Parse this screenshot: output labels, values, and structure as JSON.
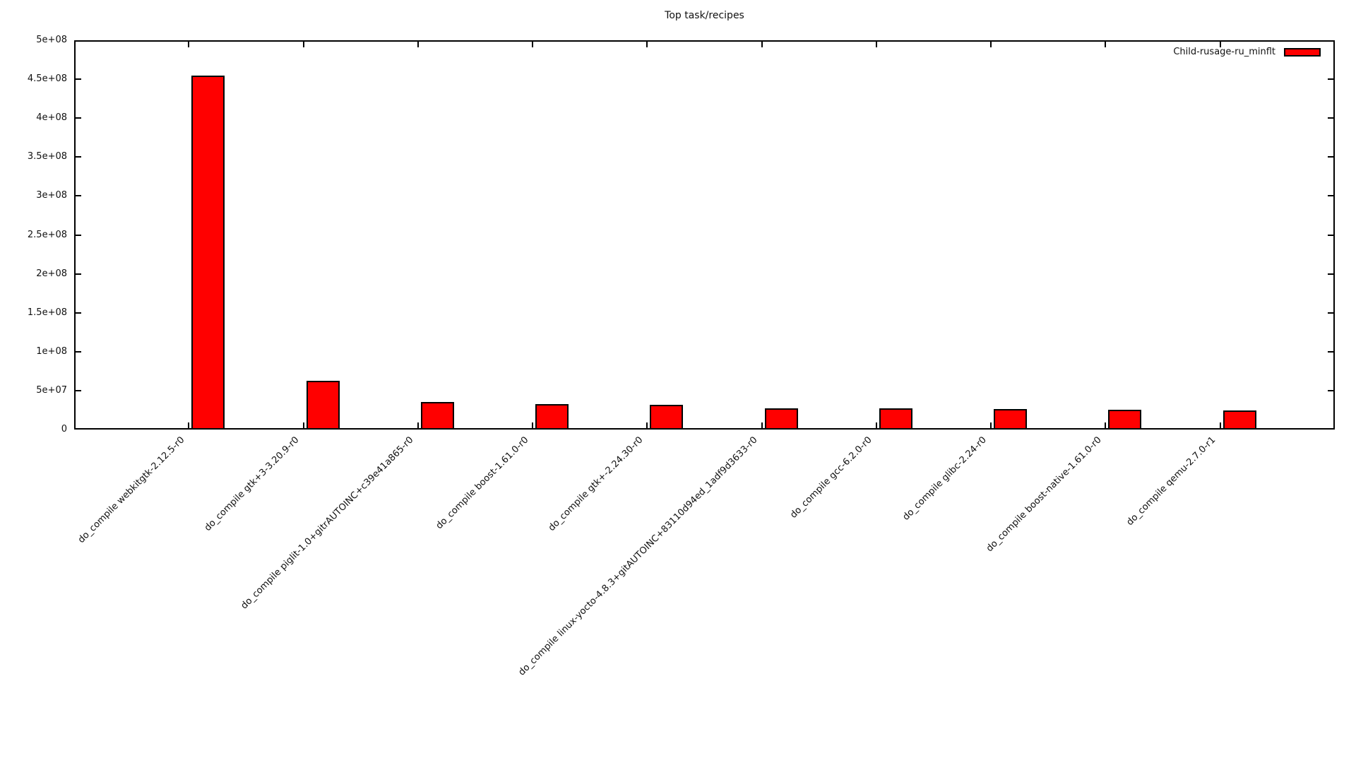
{
  "title": "Top task/recipes",
  "legend": {
    "label": "Child-rusage-ru_minflt"
  },
  "colors": {
    "bar_fill": "#ff0000",
    "bar_border": "#000000",
    "axis": "#000000",
    "text": "#111111",
    "background": "#ffffff"
  },
  "chart_data": {
    "type": "bar",
    "title": "Top task/recipes",
    "xlabel": "",
    "ylabel": "",
    "ylim": [
      0,
      500000000
    ],
    "ytick_labels": [
      "0",
      "5e+07",
      "1e+08",
      "1.5e+08",
      "2e+08",
      "2.5e+08",
      "3e+08",
      "3.5e+08",
      "4e+08",
      "4.5e+08",
      "5e+08"
    ],
    "grid": false,
    "legend_position": "top-right-inside",
    "categories": [
      "do_compile webkitgtk-2.12.5-r0",
      "do_compile gtk+3-3.20.9-r0",
      "do_compile piglit-1.0+gitrAUTOINC+c39e41a865-r0",
      "do_compile boost-1.61.0-r0",
      "do_compile gtk+-2.24.30-r0",
      "do_compile linux-yocto-4.8.3+gitAUTOINC+83110d94ed_1adf9d3633-r0",
      "do_compile gcc-6.2.0-r0",
      "do_compile glibc-2.24-r0",
      "do_compile boost-native-1.61.0-r0",
      "do_compile qemu-2.7.0-r1"
    ],
    "series": [
      {
        "name": "Child-rusage-ru_minflt",
        "color": "#ff0000",
        "values": [
          455000000,
          63000000,
          35500000,
          33000000,
          32000000,
          27500000,
          27500000,
          26000000,
          25500000,
          24500000
        ]
      }
    ]
  }
}
